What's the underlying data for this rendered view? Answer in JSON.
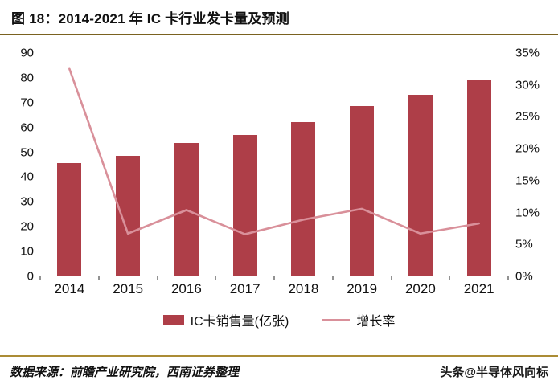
{
  "header": {
    "title": "图 18：2014-2021 年 IC 卡行业发卡量及预测"
  },
  "chart_data": {
    "type": "bar",
    "title": "2014-2021 年 IC 卡行业发卡量及预测",
    "categories": [
      "2014",
      "2015",
      "2016",
      "2017",
      "2018",
      "2019",
      "2020",
      "2021"
    ],
    "series": [
      {
        "name": "IC卡销售量(亿张)",
        "type": "bar",
        "axis": "left",
        "color": "#AE3E48",
        "values": [
          45.5,
          48.5,
          53.5,
          57,
          62,
          68.5,
          73,
          79
        ]
      },
      {
        "name": "增长率",
        "type": "line",
        "axis": "right",
        "color": "#D9909A",
        "values": [
          32.5,
          6.6,
          10.3,
          6.5,
          8.8,
          10.5,
          6.6,
          8.2
        ]
      }
    ],
    "left_axis": {
      "min": 0,
      "max": 90,
      "tick_step": 10,
      "ticks": [
        "0",
        "10",
        "20",
        "30",
        "40",
        "50",
        "60",
        "70",
        "80",
        "90"
      ]
    },
    "right_axis": {
      "min": 0,
      "max": 35,
      "tick_step": 5,
      "ticks": [
        "0%",
        "5%",
        "10%",
        "15%",
        "20%",
        "25%",
        "30%",
        "35%"
      ]
    },
    "legend_position": "bottom",
    "grid": false
  },
  "footer": {
    "source": "数据来源：前瞻产业研究院，西南证券整理",
    "watermark": "头条@半导体风向标"
  },
  "colors": {
    "bar": "#AE3E48",
    "line": "#D9909A",
    "gold_dark": "#7a6220",
    "gold_light": "#ab8c35",
    "axis": "#262626"
  }
}
